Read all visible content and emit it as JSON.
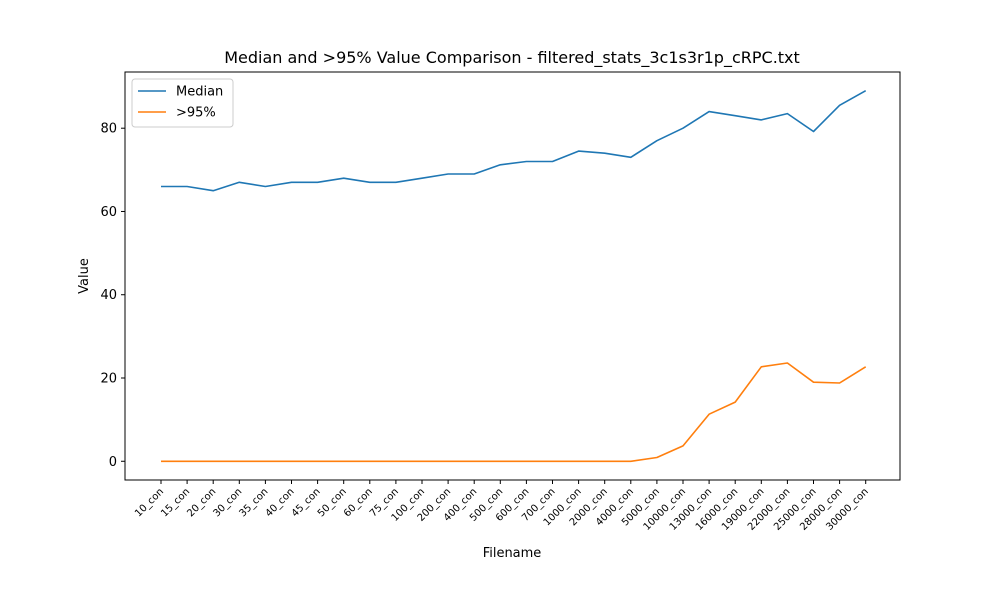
{
  "chart_data": {
    "type": "line",
    "title": "Median and >95% Value Comparison - filtered_stats_3c1s3r1p_cRPC.txt",
    "xlabel": "Filename",
    "ylabel": "Value",
    "categories": [
      "10_con",
      "15_con",
      "20_con",
      "30_con",
      "35_con",
      "40_con",
      "45_con",
      "50_con",
      "60_con",
      "75_con",
      "100_con",
      "200_con",
      "400_con",
      "500_con",
      "600_con",
      "700_con",
      "1000_con",
      "2000_con",
      "4000_con",
      "5000_con",
      "10000_con",
      "13000_con",
      "16000_con",
      "19000_con",
      "22000_con",
      "25000_con",
      "28000_con",
      "30000_con"
    ],
    "ylim": [
      -4.5,
      93.5
    ],
    "yticks": [
      0,
      20,
      40,
      60,
      80
    ],
    "grid": false,
    "legend_position": "top-left",
    "series": [
      {
        "name": "Median",
        "color": "#1f77b4",
        "values": [
          66,
          66,
          65,
          67,
          66,
          67,
          67,
          68,
          67,
          67,
          68,
          69,
          69,
          71.2,
          72,
          72,
          74.5,
          74,
          73,
          77,
          80,
          84,
          83,
          82,
          83.5,
          79.2,
          85.5,
          89
        ]
      },
      {
        "name": ">95%",
        "color": "#ff7f0e",
        "values": [
          0,
          0,
          0,
          0,
          0,
          0,
          0,
          0,
          0,
          0,
          0,
          0,
          0,
          0,
          0,
          0,
          0,
          0,
          0,
          0.9,
          3.7,
          11.3,
          14.2,
          22.7,
          23.6,
          19,
          18.8,
          22.7
        ]
      }
    ]
  }
}
